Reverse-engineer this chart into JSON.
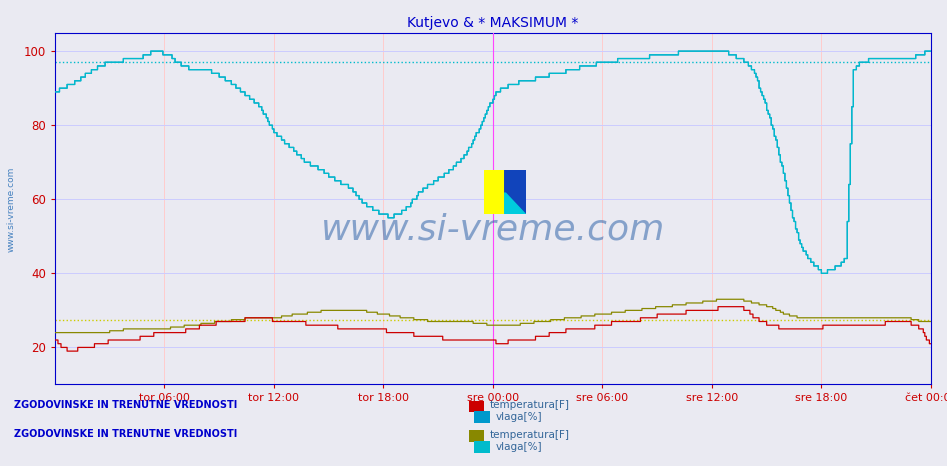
{
  "title": "Kutjevo & * MAKSIMUM *",
  "title_color": "#0000cc",
  "bg_color": "#eaeaf2",
  "plot_bg_color": "#eaeaf2",
  "ylabel": "",
  "ylim": [
    10,
    105
  ],
  "yticks": [
    20,
    40,
    60,
    80,
    100
  ],
  "xlim": [
    0,
    576
  ],
  "xtick_labels": [
    "tor 06:00",
    "tor 12:00",
    "tor 18:00",
    "sre 00:00",
    "sre 06:00",
    "sre 12:00",
    "sre 18:00",
    "čet 00:00"
  ],
  "xtick_positions": [
    72,
    144,
    216,
    288,
    360,
    432,
    504,
    576
  ],
  "text_watermark": "www.si-vreme.com",
  "text_watermark_color": "#3366aa",
  "legend1_label1": "temperatura[F]",
  "legend1_label2": "vlaga[%]",
  "legend2_label1": "temperatura[F]",
  "legend2_label2": "vlaga[%]",
  "legend1_color1": "#cc0000",
  "legend1_color2": "#0099cc",
  "legend2_color1": "#888800",
  "legend2_color2": "#00bbcc",
  "section_label": "ZGODOVINSKE IN TRENUTNE VREDNOSTI",
  "section_color": "#0000cc",
  "hline1_y": 27.5,
  "hline1_color": "#cccc00",
  "hline2_y": 97.0,
  "hline2_color": "#00bbcc",
  "vline_x": 288,
  "vline_color": "#ff44ff",
  "spine_color": "#0000cc",
  "vgrid_color": "#ffcccc",
  "hgrid_color": "#ccccff"
}
